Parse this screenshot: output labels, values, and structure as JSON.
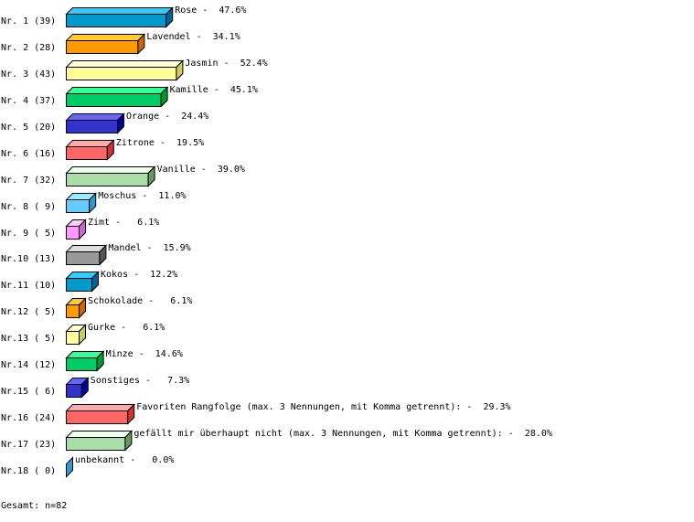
{
  "chart_data": {
    "type": "bar",
    "orientation": "horizontal",
    "style": "3d",
    "grid": false,
    "legend": "none",
    "rows": [
      {
        "rank": "Nr. 1",
        "count": 39,
        "label": "Rose",
        "percent": "47.6%"
      },
      {
        "rank": "Nr. 2",
        "count": 28,
        "label": "Lavendel",
        "percent": "34.1%"
      },
      {
        "rank": "Nr. 3",
        "count": 43,
        "label": "Jasmin",
        "percent": "52.4%"
      },
      {
        "rank": "Nr. 4",
        "count": 37,
        "label": "Kamille",
        "percent": "45.1%"
      },
      {
        "rank": "Nr. 5",
        "count": 20,
        "label": "Orange",
        "percent": "24.4%"
      },
      {
        "rank": "Nr. 6",
        "count": 16,
        "label": "Zitrone",
        "percent": "19.5%"
      },
      {
        "rank": "Nr. 7",
        "count": 32,
        "label": "Vanille",
        "percent": "39.0%"
      },
      {
        "rank": "Nr. 8",
        "count": 9,
        "label": "Moschus",
        "percent": "11.0%"
      },
      {
        "rank": "Nr. 9",
        "count": 5,
        "label": "Zimt",
        "percent": "6.1%"
      },
      {
        "rank": "Nr.10",
        "count": 13,
        "label": "Mandel",
        "percent": "15.9%"
      },
      {
        "rank": "Nr.11",
        "count": 10,
        "label": "Kokos",
        "percent": "12.2%"
      },
      {
        "rank": "Nr.12",
        "count": 5,
        "label": "Schokolade",
        "percent": "6.1%"
      },
      {
        "rank": "Nr.13",
        "count": 5,
        "label": "Gurke",
        "percent": "6.1%"
      },
      {
        "rank": "Nr.14",
        "count": 12,
        "label": "Minze",
        "percent": "14.6%"
      },
      {
        "rank": "Nr.15",
        "count": 6,
        "label": "Sonstiges",
        "percent": "7.3%"
      },
      {
        "rank": "Nr.16",
        "count": 24,
        "label": "Favoriten Rangfolge (max. 3 Nennungen, mit Komma getrennt):",
        "percent": "29.3%"
      },
      {
        "rank": "Nr.17",
        "count": 23,
        "label": "gefällt mir überhaupt nicht (max. 3 Nennungen, mit Komma getrennt):",
        "percent": "28.0%"
      },
      {
        "rank": "Nr.18",
        "count": 0,
        "label": "unbekannt",
        "percent": "0.0%"
      }
    ],
    "palette": [
      {
        "front": "#0099cc",
        "top": "#33ccff",
        "side": "#006699"
      },
      {
        "front": "#ff9900",
        "top": "#ffcc33",
        "side": "#cc6600"
      },
      {
        "front": "#ffff99",
        "top": "#ffffcc",
        "side": "#cccc66"
      },
      {
        "front": "#00cc66",
        "top": "#33ff99",
        "side": "#009933"
      },
      {
        "front": "#3333cc",
        "top": "#6666ff",
        "side": "#000099"
      },
      {
        "front": "#ff6666",
        "top": "#ffaaaa",
        "side": "#cc3333"
      },
      {
        "front": "#aaddaa",
        "top": "#eeffee",
        "side": "#669966"
      },
      {
        "front": "#66ccff",
        "top": "#99eeff",
        "side": "#3399cc"
      },
      {
        "front": "#ff99ff",
        "top": "#ffccff",
        "side": "#cc66cc"
      },
      {
        "front": "#999999",
        "top": "#dddddd",
        "side": "#555555"
      }
    ]
  },
  "footer": {
    "total": "Gesamt: n=82"
  }
}
